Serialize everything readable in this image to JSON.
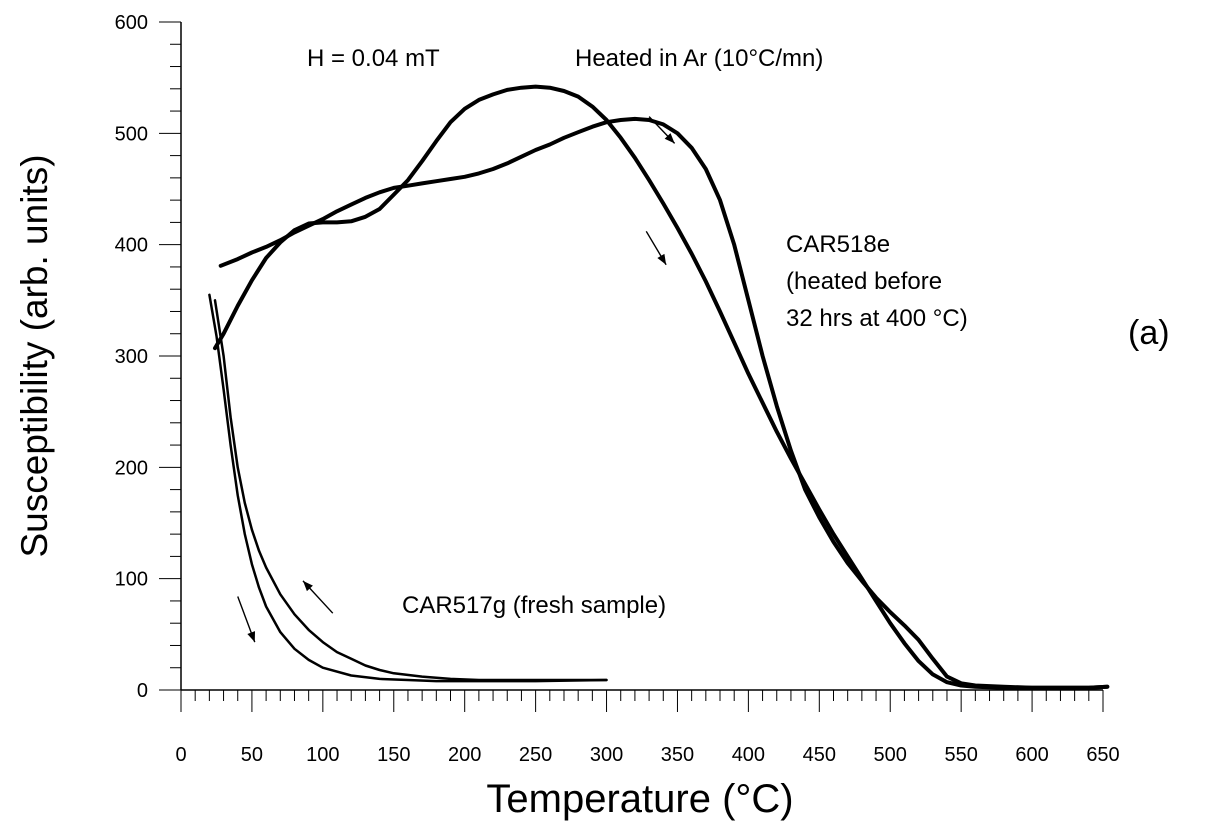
{
  "chart_data": {
    "type": "line",
    "title": "",
    "xlabel": "Temperature (°C)",
    "ylabel": "Susceptibility (arb. units)",
    "xlim": [
      0,
      650
    ],
    "ylim": [
      0,
      600
    ],
    "x_ticks": [
      0,
      50,
      100,
      150,
      200,
      250,
      300,
      350,
      400,
      450,
      500,
      550,
      600,
      650
    ],
    "y_ticks": [
      0,
      100,
      200,
      300,
      400,
      500,
      600
    ],
    "x_minor_step": 10,
    "y_minor_step": 20,
    "grid": false,
    "annotations": {
      "field": "H = 0.04 mT",
      "heating": "Heated in Ar (10°C/mn)",
      "sample_e_1": "CAR518e",
      "sample_e_2": "(heated before",
      "sample_e_3": "32 hrs at 400 °C)",
      "sample_g": "CAR517g (fresh sample)",
      "panel": "(a)"
    },
    "series": [
      {
        "name": "",
        "stroke": 4,
        "points": [
          [
            24,
            307
          ],
          [
            30,
            320
          ],
          [
            40,
            345
          ],
          [
            50,
            368
          ],
          [
            60,
            388
          ],
          [
            70,
            402
          ],
          [
            80,
            413
          ],
          [
            90,
            419
          ],
          [
            100,
            420
          ],
          [
            110,
            420
          ],
          [
            120,
            421
          ],
          [
            130,
            425
          ],
          [
            140,
            432
          ],
          [
            150,
            445
          ],
          [
            160,
            458
          ],
          [
            170,
            475
          ],
          [
            180,
            493
          ],
          [
            190,
            510
          ],
          [
            200,
            522
          ],
          [
            210,
            530
          ],
          [
            220,
            535
          ],
          [
            230,
            539
          ],
          [
            240,
            541
          ],
          [
            250,
            542
          ],
          [
            260,
            541
          ],
          [
            270,
            538
          ],
          [
            280,
            533
          ],
          [
            290,
            524
          ],
          [
            300,
            512
          ],
          [
            310,
            496
          ],
          [
            320,
            478
          ],
          [
            330,
            458
          ],
          [
            340,
            437
          ],
          [
            350,
            415
          ],
          [
            360,
            392
          ],
          [
            370,
            367
          ],
          [
            380,
            340
          ],
          [
            390,
            312
          ],
          [
            400,
            284
          ],
          [
            410,
            258
          ],
          [
            420,
            232
          ],
          [
            430,
            208
          ],
          [
            440,
            185
          ],
          [
            450,
            162
          ],
          [
            460,
            140
          ],
          [
            470,
            120
          ],
          [
            480,
            100
          ],
          [
            490,
            80
          ],
          [
            500,
            60
          ],
          [
            510,
            42
          ],
          [
            520,
            26
          ],
          [
            530,
            14
          ],
          [
            540,
            7
          ],
          [
            550,
            4
          ],
          [
            560,
            3
          ],
          [
            580,
            2
          ],
          [
            600,
            2
          ],
          [
            620,
            2
          ],
          [
            640,
            2
          ],
          [
            653,
            3
          ]
        ]
      },
      {
        "name": "",
        "stroke": 4,
        "points": [
          [
            28,
            381
          ],
          [
            40,
            387
          ],
          [
            50,
            393
          ],
          [
            60,
            398
          ],
          [
            70,
            404
          ],
          [
            80,
            411
          ],
          [
            90,
            417
          ],
          [
            100,
            423
          ],
          [
            110,
            430
          ],
          [
            120,
            436
          ],
          [
            130,
            442
          ],
          [
            140,
            447
          ],
          [
            150,
            451
          ],
          [
            160,
            453
          ],
          [
            170,
            455
          ],
          [
            180,
            457
          ],
          [
            190,
            459
          ],
          [
            200,
            461
          ],
          [
            210,
            464
          ],
          [
            220,
            468
          ],
          [
            230,
            473
          ],
          [
            240,
            479
          ],
          [
            250,
            485
          ],
          [
            260,
            490
          ],
          [
            270,
            496
          ],
          [
            280,
            501
          ],
          [
            290,
            506
          ],
          [
            300,
            510
          ],
          [
            310,
            512
          ],
          [
            320,
            513
          ],
          [
            330,
            512
          ],
          [
            340,
            508
          ],
          [
            350,
            500
          ],
          [
            360,
            487
          ],
          [
            370,
            468
          ],
          [
            380,
            440
          ],
          [
            390,
            400
          ],
          [
            400,
            350
          ],
          [
            410,
            300
          ],
          [
            420,
            255
          ],
          [
            430,
            215
          ],
          [
            440,
            180
          ],
          [
            450,
            155
          ],
          [
            460,
            133
          ],
          [
            470,
            114
          ],
          [
            480,
            98
          ],
          [
            490,
            83
          ],
          [
            500,
            70
          ],
          [
            510,
            58
          ],
          [
            520,
            45
          ],
          [
            530,
            28
          ],
          [
            540,
            12
          ],
          [
            550,
            6
          ],
          [
            560,
            4
          ],
          [
            580,
            3
          ],
          [
            600,
            2
          ],
          [
            620,
            2
          ],
          [
            640,
            2
          ],
          [
            653,
            3
          ]
        ]
      },
      {
        "name": "",
        "stroke": 2.5,
        "points": [
          [
            20,
            355
          ],
          [
            25,
            318
          ],
          [
            30,
            270
          ],
          [
            35,
            220
          ],
          [
            40,
            175
          ],
          [
            45,
            140
          ],
          [
            50,
            113
          ],
          [
            55,
            92
          ],
          [
            60,
            75
          ],
          [
            70,
            52
          ],
          [
            80,
            37
          ],
          [
            90,
            27
          ],
          [
            100,
            20
          ],
          [
            120,
            13
          ],
          [
            140,
            10
          ],
          [
            160,
            9
          ],
          [
            180,
            8
          ],
          [
            200,
            8
          ],
          [
            250,
            8
          ],
          [
            300,
            9
          ]
        ]
      },
      {
        "name": "",
        "stroke": 2.5,
        "points": [
          [
            24,
            350
          ],
          [
            30,
            300
          ],
          [
            35,
            245
          ],
          [
            40,
            200
          ],
          [
            45,
            168
          ],
          [
            50,
            144
          ],
          [
            55,
            125
          ],
          [
            60,
            110
          ],
          [
            70,
            86
          ],
          [
            80,
            68
          ],
          [
            90,
            54
          ],
          [
            100,
            43
          ],
          [
            110,
            34
          ],
          [
            120,
            28
          ],
          [
            130,
            22
          ],
          [
            140,
            18
          ],
          [
            150,
            15
          ],
          [
            170,
            12
          ],
          [
            190,
            10
          ],
          [
            210,
            9
          ],
          [
            250,
            9
          ],
          [
            300,
            9
          ]
        ]
      }
    ],
    "arrows": [
      {
        "from": [
          330,
          515
        ],
        "to": [
          348,
          491
        ]
      },
      {
        "from": [
          328,
          412
        ],
        "to": [
          342,
          382
        ]
      },
      {
        "from": [
          107,
          69
        ],
        "to": [
          86,
          98
        ]
      },
      {
        "from": [
          40,
          84
        ],
        "to": [
          52,
          43
        ]
      }
    ]
  }
}
